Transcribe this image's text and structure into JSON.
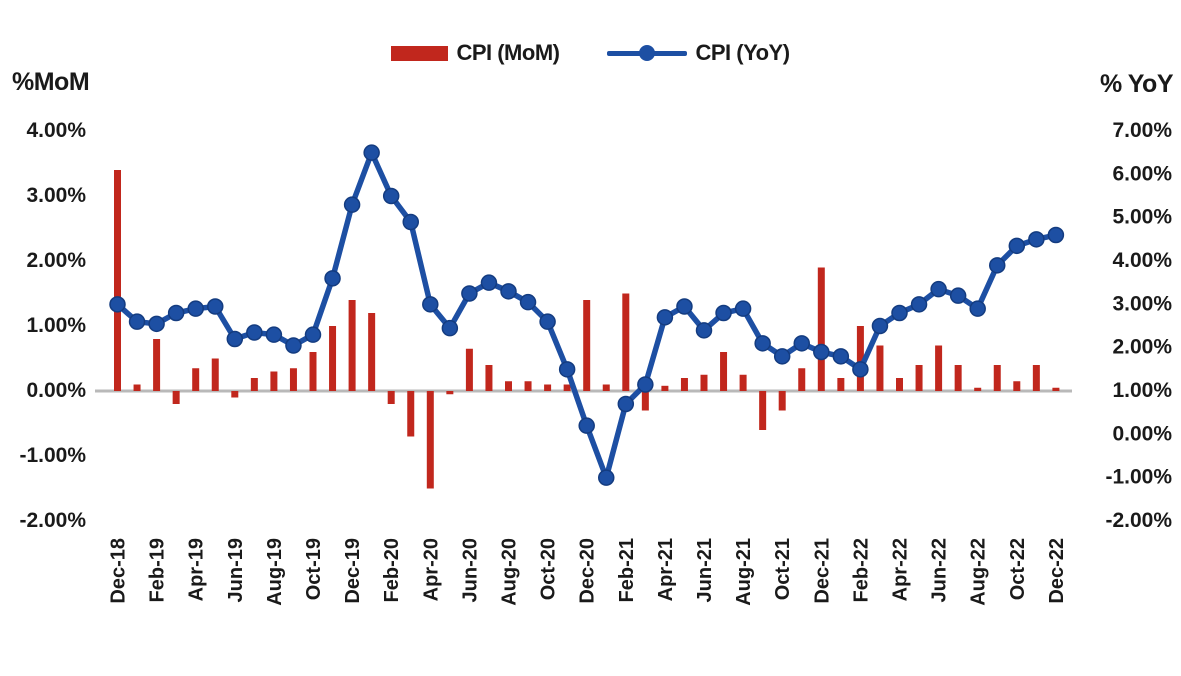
{
  "legend": {
    "items": [
      {
        "label": "CPI (MoM)",
        "swatch": "bar-swatch",
        "color": "#c1271d"
      },
      {
        "label": "CPI (YoY)",
        "swatch": "line-dot-swatch",
        "color": "#1d4fa3"
      }
    ]
  },
  "axes": {
    "left": {
      "title": "%MoM",
      "tick_labels": [
        "4.00%",
        "3.00%",
        "2.00%",
        "1.00%",
        "0.00%",
        "-1.00%",
        "-2.00%"
      ],
      "range": [
        -2,
        4
      ]
    },
    "right": {
      "title": "% YoY",
      "tick_labels": [
        "7.00%",
        "6.00%",
        "5.00%",
        "4.00%",
        "3.00%",
        "2.00%",
        "1.00%",
        "0.00%",
        "-1.00%",
        "-2.00%"
      ],
      "range": [
        -2,
        7
      ]
    }
  },
  "chart_data": {
    "type": "bar+line combo",
    "x": [
      "Dec-18",
      "Jan-19",
      "Feb-19",
      "Mar-19",
      "Apr-19",
      "May-19",
      "Jun-19",
      "Jul-19",
      "Aug-19",
      "Sep-19",
      "Oct-19",
      "Nov-19",
      "Dec-19",
      "Jan-20",
      "Feb-20",
      "Mar-20",
      "Apr-20",
      "May-20",
      "Jun-20",
      "Jul-20",
      "Aug-20",
      "Sep-20",
      "Oct-20",
      "Nov-20",
      "Dec-20",
      "Jan-21",
      "Feb-21",
      "Mar-21",
      "Apr-21",
      "May-21",
      "Jun-21",
      "Jul-21",
      "Aug-21",
      "Sep-21",
      "Oct-21",
      "Nov-21",
      "Dec-21",
      "Jan-22",
      "Feb-22",
      "Mar-22",
      "Apr-22",
      "May-22",
      "Jun-22",
      "Jul-22",
      "Aug-22",
      "Sep-22",
      "Oct-22",
      "Nov-22",
      "Dec-22"
    ],
    "x_tick_labels_shown": [
      "Dec-18",
      "Feb-19",
      "Apr-19",
      "Jun-19",
      "Aug-19",
      "Oct-19",
      "Dec-19",
      "Feb-20",
      "Apr-20",
      "Jun-20",
      "Aug-20",
      "Oct-20",
      "Dec-20",
      "Feb-21",
      "Apr-21",
      "Jun-21",
      "Aug-21",
      "Oct-21",
      "Dec-21",
      "Feb-22",
      "Apr-22",
      "Jun-22",
      "Aug-22",
      "Oct-22",
      "Dec-22"
    ],
    "x_tick_step": 2,
    "series": [
      {
        "name": "CPI (MoM)",
        "type": "bar",
        "axis": "left",
        "color": "#c1271d",
        "values": [
          3.4,
          0.1,
          0.8,
          -0.2,
          0.35,
          0.5,
          -0.1,
          0.2,
          0.3,
          0.35,
          0.6,
          1.0,
          1.4,
          1.2,
          -0.2,
          -0.7,
          -1.5,
          -0.05,
          0.65,
          0.4,
          0.15,
          0.15,
          0.1,
          0.1,
          1.4,
          0.1,
          1.5,
          -0.3,
          0.08,
          0.2,
          0.25,
          0.6,
          0.25,
          -0.6,
          -0.3,
          0.35,
          1.9,
          0.2,
          1.0,
          0.7,
          0.2,
          0.4,
          0.7,
          0.4,
          0.05,
          0.4,
          0.15,
          0.4,
          0.05
        ]
      },
      {
        "name": "CPI (YoY)",
        "type": "line",
        "axis": "right",
        "color": "#1d4fa3",
        "values": [
          3.0,
          2.6,
          2.55,
          2.8,
          2.9,
          2.95,
          2.2,
          2.35,
          2.3,
          2.05,
          2.3,
          3.6,
          5.3,
          6.5,
          5.5,
          4.9,
          3.0,
          2.45,
          3.25,
          3.5,
          3.3,
          3.05,
          2.6,
          1.5,
          0.2,
          -1.0,
          0.7,
          1.15,
          2.7,
          2.95,
          2.4,
          2.8,
          2.9,
          2.1,
          1.8,
          2.1,
          1.9,
          1.8,
          1.5,
          2.5,
          2.8,
          3.0,
          3.35,
          3.2,
          2.9,
          3.9,
          4.35,
          4.5,
          4.6
        ]
      }
    ],
    "left_axis_range": [
      -2,
      4
    ],
    "right_axis_range": [
      -2,
      7
    ],
    "grid": false,
    "legend_position": "top-center",
    "zero_line_color": "#b9b9b9",
    "marker": "circle"
  }
}
